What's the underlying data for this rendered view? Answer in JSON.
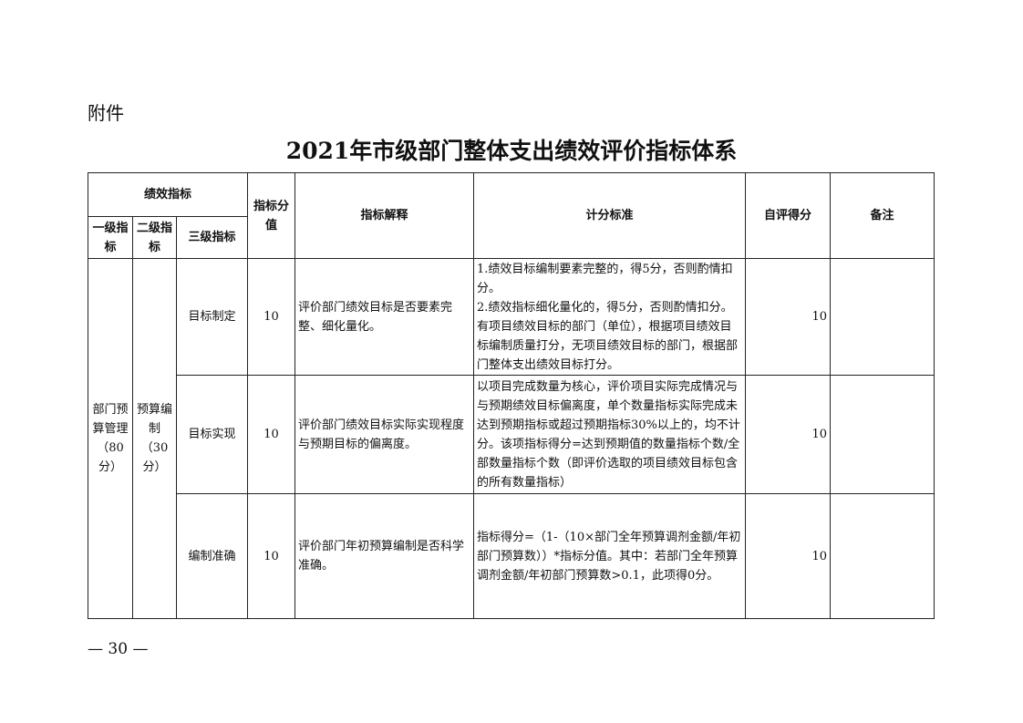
{
  "attachment": "附件",
  "title": "2021年市级部门整体支出绩效评价指标体系",
  "headers": {
    "performance": "绩效指标",
    "level1": "一级指标",
    "level2": "二级指标",
    "level3": "三级指标",
    "score_value": "指标分值",
    "explanation": "指标解释",
    "criteria": "计分标准",
    "self_score": "自评得分",
    "remarks": "备注"
  },
  "level1": "部门预算管理（80分）",
  "level2": "预算编制（30分）",
  "rows": [
    {
      "level3": "目标制定",
      "value": "10",
      "explanation": "评价部门绩效目标是否要素完整、细化量化。",
      "criteria": "1.绩效目标编制要素完整的，得5分，否则酌情扣分。\n2.绩效指标细化量化的，得5分，否则酌情扣分。有项目绩效目标的部门（单位），根据项目绩效目标编制质量打分，无项目绩效目标的部门，根据部门整体支出绩效目标打分。",
      "self_score": "10",
      "remarks": ""
    },
    {
      "level3": "目标实现",
      "value": "10",
      "explanation": "评价部门绩效目标实际实现程度与预期目标的偏离度。",
      "criteria": "以项目完成数量为核心，评价项目实际完成情况与与预期绩效目标偏离度，单个数量指标实际完成未达到预期指标或超过预期指标30%以上的，均不计分。该项指标得分=达到预期值的数量指标个数/全部数量指标个数（即评价选取的项目绩效目标包含的所有数量指标）",
      "self_score": "10",
      "remarks": ""
    },
    {
      "level3": "编制准确",
      "value": "10",
      "explanation": "评价部门年初预算编制是否科学准确。",
      "criteria": "指标得分=（1-（10×部门全年预算调剂金额/年初部门预算数））*指标分值。其中：若部门全年预算调剂金额/年初部门预算数>0.1，此项得0分。",
      "self_score": "10",
      "remarks": ""
    }
  ],
  "page_number": "— 30 —"
}
